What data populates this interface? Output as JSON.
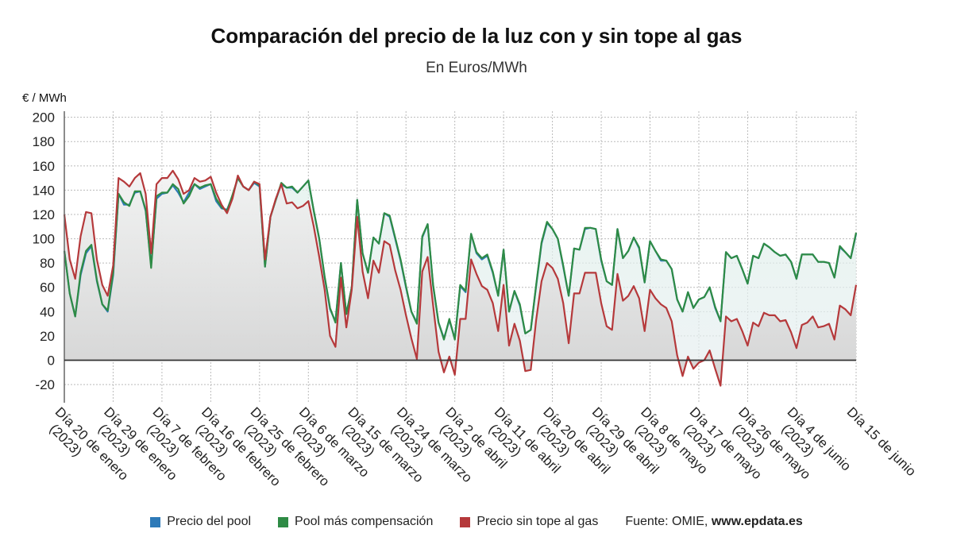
{
  "chart_data": {
    "type": "line",
    "title": "Comparación del precio de la luz con y sin tope al gas",
    "subtitle": "En Euros/MWh",
    "ylabel": "€ / MWh",
    "xlabel": "",
    "ylim": [
      -35,
      205
    ],
    "yticks": [
      -20,
      0,
      20,
      40,
      60,
      80,
      100,
      120,
      140,
      160,
      180,
      200
    ],
    "grid": true,
    "legend_position": "bottom",
    "source_prefix": "Fuente: OMIE, ",
    "source_site": "www.epdata.es",
    "x_start": "2023-01-20",
    "x_end": "2023-06-15",
    "x_tick_labels": [
      {
        "date": "2023-01-20",
        "line1": "Día 20 de enero",
        "line2": "(2023)"
      },
      {
        "date": "2023-01-29",
        "line1": "Día 29 de enero",
        "line2": "(2023)"
      },
      {
        "date": "2023-02-07",
        "line1": "Día 7 de febrero",
        "line2": "(2023)"
      },
      {
        "date": "2023-02-16",
        "line1": "Día 16 de febrero",
        "line2": "(2023)"
      },
      {
        "date": "2023-02-25",
        "line1": "Día 25 de febrero",
        "line2": "(2023)"
      },
      {
        "date": "2023-03-06",
        "line1": "Día 6 de marzo",
        "line2": "(2023)"
      },
      {
        "date": "2023-03-15",
        "line1": "Día 15 de marzo",
        "line2": "(2023)"
      },
      {
        "date": "2023-03-24",
        "line1": "Día 24 de marzo",
        "line2": "(2023)"
      },
      {
        "date": "2023-04-02",
        "line1": "Día 2 de abril",
        "line2": "(2023)"
      },
      {
        "date": "2023-04-11",
        "line1": "Día 11 de abril",
        "line2": "(2023)"
      },
      {
        "date": "2023-04-20",
        "line1": "Día 20 de abril",
        "line2": "(2023)"
      },
      {
        "date": "2023-04-29",
        "line1": "Día 29 de abril",
        "line2": "(2023)"
      },
      {
        "date": "2023-05-08",
        "line1": "Día 8 de mayo",
        "line2": "(2023)"
      },
      {
        "date": "2023-05-17",
        "line1": "Día 17 de mayo",
        "line2": "(2023)"
      },
      {
        "date": "2023-05-26",
        "line1": "Día 26 de mayo",
        "line2": "(2023)"
      },
      {
        "date": "2023-06-04",
        "line1": "Día 4 de junio",
        "line2": "(2023)"
      },
      {
        "date": "2023-06-15",
        "line1": "Día 15 de junio",
        "line2": ""
      }
    ],
    "series": [
      {
        "name": "Precio del pool",
        "color": "#2e7ab8",
        "values": [
          90,
          55,
          36,
          70,
          88,
          94,
          65,
          46,
          40,
          70,
          137,
          128,
          128,
          138,
          139,
          123,
          78,
          133,
          137,
          138,
          144,
          138,
          130,
          138,
          145,
          141,
          143,
          145,
          131,
          125,
          124,
          135,
          150,
          143,
          140,
          146,
          143,
          77,
          118,
          132,
          145,
          142,
          142,
          138,
          143,
          148,
          123,
          100,
          68,
          42,
          32,
          80,
          38,
          60,
          132,
          88,
          72,
          101,
          96,
          121,
          118,
          100,
          82,
          60,
          40,
          31,
          101,
          112,
          61,
          31,
          18,
          33,
          18,
          61,
          56,
          104,
          88,
          83,
          86,
          72,
          53,
          91,
          40,
          57,
          45,
          22,
          25,
          61,
          96,
          113,
          108,
          100,
          77,
          53,
          92,
          91,
          108,
          109,
          108,
          82,
          65,
          62,
          108,
          84,
          90,
          101,
          92,
          64,
          98,
          90,
          82,
          82,
          75,
          50,
          40,
          56,
          43,
          50,
          52,
          60,
          43,
          32,
          89,
          84,
          86,
          75,
          63,
          86,
          84,
          96,
          93,
          89,
          86,
          87,
          81,
          67,
          87,
          87,
          87,
          81,
          81,
          80,
          68,
          93,
          89,
          84,
          104
        ]
      },
      {
        "name": "Pool más compensación",
        "color": "#2e8b45",
        "values": [
          90,
          55,
          36,
          72,
          90,
          95,
          66,
          46,
          41,
          72,
          137,
          130,
          127,
          139,
          139,
          124,
          76,
          135,
          138,
          138,
          145,
          141,
          129,
          135,
          145,
          142,
          144,
          145,
          133,
          126,
          123,
          136,
          150,
          143,
          140,
          147,
          144,
          77,
          118,
          132,
          146,
          142,
          143,
          138,
          143,
          148,
          123,
          100,
          69,
          43,
          31,
          80,
          38,
          60,
          132,
          88,
          72,
          101,
          96,
          121,
          119,
          101,
          83,
          61,
          40,
          30,
          102,
          112,
          62,
          31,
          17,
          34,
          17,
          62,
          57,
          104,
          89,
          84,
          87,
          73,
          53,
          91,
          40,
          57,
          46,
          22,
          25,
          62,
          97,
          114,
          108,
          100,
          78,
          53,
          92,
          91,
          109,
          109,
          108,
          83,
          65,
          62,
          108,
          84,
          90,
          101,
          93,
          64,
          98,
          90,
          83,
          82,
          75,
          50,
          40,
          56,
          43,
          50,
          52,
          60,
          44,
          32,
          89,
          84,
          86,
          75,
          63,
          86,
          84,
          96,
          93,
          89,
          86,
          87,
          81,
          67,
          87,
          87,
          87,
          81,
          81,
          80,
          68,
          94,
          89,
          84,
          105
        ]
      },
      {
        "name": "Precio sin tope al gas",
        "color": "#b5393b",
        "values": [
          120,
          83,
          67,
          102,
          122,
          121,
          83,
          62,
          53,
          78,
          150,
          147,
          143,
          150,
          154,
          137,
          88,
          145,
          150,
          150,
          156,
          149,
          137,
          140,
          150,
          147,
          148,
          151,
          138,
          128,
          121,
          133,
          152,
          143,
          140,
          147,
          145,
          83,
          118,
          133,
          145,
          129,
          130,
          125,
          127,
          131,
          110,
          85,
          58,
          20,
          11,
          68,
          27,
          58,
          118,
          73,
          51,
          82,
          72,
          98,
          95,
          74,
          58,
          37,
          18,
          1,
          73,
          85,
          45,
          7,
          -10,
          3,
          -12,
          34,
          34,
          83,
          71,
          61,
          58,
          47,
          24,
          62,
          12,
          30,
          16,
          -9,
          -8,
          33,
          65,
          80,
          76,
          67,
          47,
          14,
          55,
          55,
          72,
          72,
          72,
          47,
          28,
          25,
          71,
          49,
          53,
          61,
          51,
          24,
          58,
          51,
          46,
          43,
          32,
          4,
          -13,
          3,
          -7,
          -2,
          0,
          8,
          -7,
          -21,
          36,
          32,
          34,
          24,
          12,
          31,
          28,
          39,
          37,
          37,
          32,
          33,
          23,
          10,
          29,
          31,
          36,
          27,
          28,
          30,
          17,
          45,
          42,
          37,
          62
        ]
      }
    ]
  }
}
